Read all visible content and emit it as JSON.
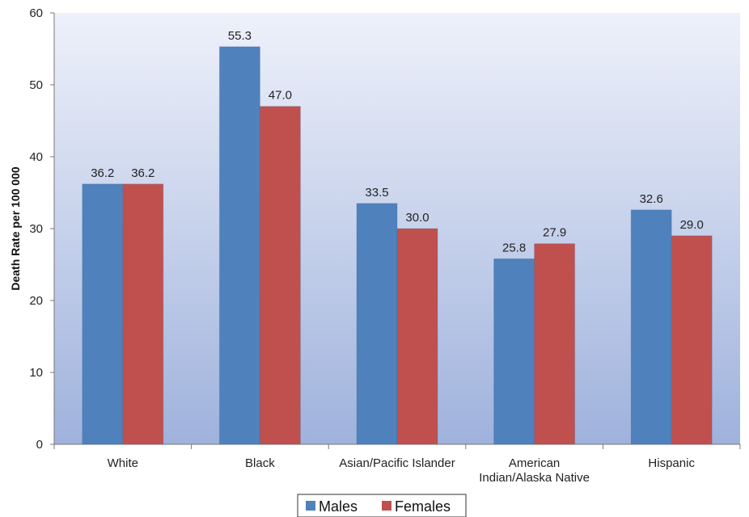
{
  "chart_data": {
    "type": "bar",
    "title": "",
    "xlabel": "",
    "ylabel": "Death Rate per 100 000",
    "ylim": [
      0,
      60
    ],
    "yticks": [
      0,
      10,
      20,
      30,
      40,
      50,
      60
    ],
    "grid": false,
    "legend_position": "bottom-center",
    "categories": [
      [
        "White"
      ],
      [
        "Black"
      ],
      [
        "Asian/Pacific Islander"
      ],
      [
        "American",
        "Indian/Alaska Native"
      ],
      [
        "Hispanic"
      ]
    ],
    "series": [
      {
        "name": "Males",
        "color": "#4f81bd",
        "values": [
          36.2,
          55.3,
          33.5,
          25.8,
          32.6
        ],
        "labels": [
          "36.2",
          "55.3",
          "33.5",
          "25.8",
          "32.6"
        ]
      },
      {
        "name": "Females",
        "color": "#c0504d",
        "values": [
          36.2,
          47.0,
          30.0,
          27.9,
          29.0
        ],
        "labels": [
          "36.2",
          "47.0",
          "30.0",
          "27.9",
          "29.0"
        ]
      }
    ]
  }
}
